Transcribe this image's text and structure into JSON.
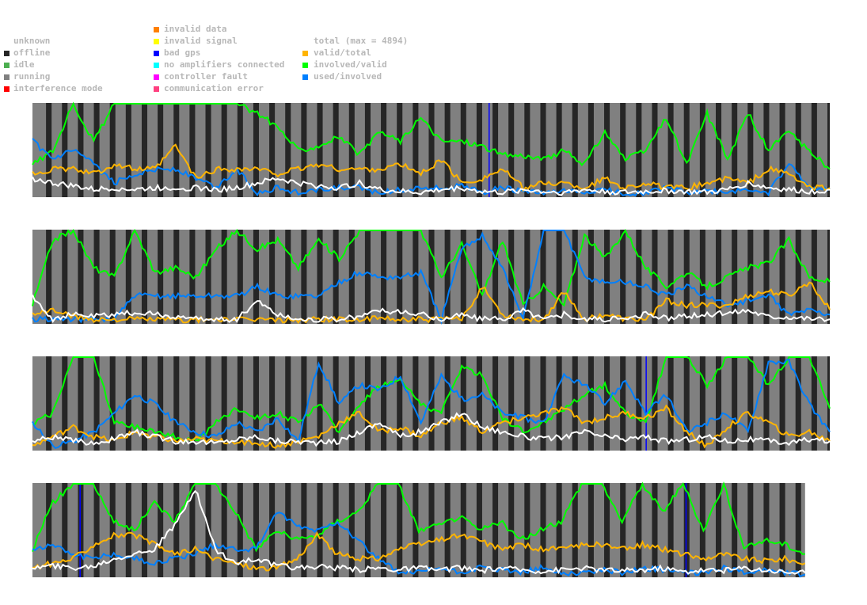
{
  "legend": {
    "status": [
      {
        "label": "unknown",
        "color": "#ffffff"
      },
      {
        "label": "offline",
        "color": "#262626"
      },
      {
        "label": "idle",
        "color": "#4caf50"
      },
      {
        "label": "running",
        "color": "#808080"
      },
      {
        "label": "interference mode",
        "color": "#ff0000"
      }
    ],
    "errors": [
      {
        "label": "invalid data",
        "color": "#ff8000"
      },
      {
        "label": "invalid signal",
        "color": "#ffff00"
      },
      {
        "label": "bad gps",
        "color": "#0000ff"
      },
      {
        "label": "no amplifiers connected",
        "color": "#00ffff"
      },
      {
        "label": "controller fault",
        "color": "#ff00ff"
      },
      {
        "label": "communication error",
        "color": "#ff4080"
      }
    ],
    "ratios": [
      {
        "label": "total (max = 4894)",
        "color": "#ffffff"
      },
      {
        "label": "valid/total",
        "color": "#ffb400"
      },
      {
        "label": "involved/valid",
        "color": "#00ff00"
      },
      {
        "label": "used/involved",
        "color": "#0080ff"
      }
    ]
  },
  "chart_data": {
    "type": "line",
    "title": "",
    "ylim": [
      0,
      1
    ],
    "offline": {
      "period": 20,
      "length": 7,
      "offset": 17
    },
    "strips": [
      {
        "range": [
          0,
          1000
        ],
        "bad_gps": [
          572
        ],
        "involved_valid": [
          0.35,
          0.5,
          1,
          0.6,
          1,
          1,
          1,
          1,
          1,
          1,
          1,
          0.9,
          0.75,
          0.5,
          0.55,
          0.65,
          0.45,
          0.7,
          0.6,
          0.85,
          0.6,
          0.6,
          0.55,
          0.45,
          0.45,
          0.4,
          0.5,
          0.35,
          0.7,
          0.4,
          0.5,
          0.85,
          0.35,
          0.9,
          0.4,
          0.9,
          0.5,
          0.7,
          0.5,
          0.3
        ],
        "used_involved": [
          0.6,
          0.4,
          0.5,
          0.35,
          0.15,
          0.25,
          0.3,
          0.3,
          0.2,
          0.1,
          0.3,
          0.05,
          0.1,
          0.05,
          0.08,
          0.1,
          0.1,
          0.05,
          0.08,
          0.1,
          0.1,
          0.12,
          0.05,
          0.1,
          0.06,
          0.04,
          0.06,
          0.05,
          0.08,
          0.04,
          0.05,
          0.1,
          0.05,
          0.06,
          0.05,
          0.08,
          0.05,
          0.35,
          0.1,
          0.1
        ],
        "valid_total": [
          0.25,
          0.3,
          0.3,
          0.25,
          0.35,
          0.3,
          0.3,
          0.55,
          0.2,
          0.3,
          0.3,
          0.3,
          0.25,
          0.3,
          0.35,
          0.3,
          0.3,
          0.3,
          0.35,
          0.25,
          0.4,
          0.15,
          0.2,
          0.3,
          0.1,
          0.15,
          0.15,
          0.1,
          0.2,
          0.1,
          0.15,
          0.1,
          0.1,
          0.15,
          0.2,
          0.15,
          0.3,
          0.25,
          0.1,
          0.1
        ],
        "total": [
          0.2,
          0.15,
          0.12,
          0.08,
          0.1,
          0.08,
          0.1,
          0.1,
          0.1,
          0.08,
          0.1,
          0.15,
          0.2,
          0.15,
          0.12,
          0.1,
          0.15,
          0.08,
          0.06,
          0.05,
          0.08,
          0.1,
          0.06,
          0.05,
          0.08,
          0.06,
          0.05,
          0.08,
          0.06,
          0.05,
          0.06,
          0.07,
          0.06,
          0.05,
          0.08,
          0.15,
          0.1,
          0.08,
          0.06,
          0.08
        ]
      },
      {
        "range": [
          0,
          1000
        ],
        "bad_gps": [],
        "involved_valid": [
          0.2,
          0.9,
          1,
          0.6,
          0.5,
          1,
          0.55,
          0.6,
          0.5,
          0.8,
          1,
          0.8,
          0.9,
          0.6,
          0.9,
          0.7,
          1,
          1,
          1,
          1,
          0.5,
          0.85,
          0.3,
          0.9,
          0.2,
          0.4,
          0.2,
          0.95,
          0.7,
          1,
          0.6,
          0.4,
          0.55,
          0.4,
          0.5,
          0.6,
          0.65,
          0.9,
          0.5,
          0.45
        ],
        "used_involved": [
          0.05,
          0.05,
          0.05,
          0.05,
          0.05,
          0.3,
          0.3,
          0.3,
          0.3,
          0.3,
          0.3,
          0.4,
          0.3,
          0.3,
          0.3,
          0.45,
          0.55,
          0.5,
          0.5,
          0.55,
          0.05,
          0.8,
          0.95,
          0.6,
          0.05,
          1,
          1,
          0.5,
          0.45,
          0.45,
          0.4,
          0.3,
          0.4,
          0.3,
          0.2,
          0.25,
          0.3,
          0.1,
          0.15,
          0.1
        ],
        "valid_total": [
          0.1,
          0.15,
          0.08,
          0.05,
          0.05,
          0.05,
          0.05,
          0.04,
          0.04,
          0.05,
          0.04,
          0.05,
          0.04,
          0.04,
          0.05,
          0.05,
          0.04,
          0.06,
          0.05,
          0.05,
          0.05,
          0.05,
          0.4,
          0.1,
          0.05,
          0.05,
          0.35,
          0.05,
          0.1,
          0.05,
          0.05,
          0.25,
          0.2,
          0.2,
          0.2,
          0.3,
          0.35,
          0.3,
          0.45,
          0.15
        ],
        "total": [
          0.3,
          0.05,
          0.1,
          0.08,
          0.1,
          0.12,
          0.1,
          0.08,
          0.05,
          0.05,
          0.05,
          0.25,
          0.1,
          0.05,
          0.05,
          0.05,
          0.08,
          0.15,
          0.12,
          0.1,
          0.05,
          0.1,
          0.05,
          0.05,
          0.15,
          0.05,
          0.1,
          0.05,
          0.05,
          0.05,
          0.1,
          0.06,
          0.08,
          0.1,
          0.12,
          0.15,
          0.08,
          0.08,
          0.06,
          0.05
        ]
      },
      {
        "range": [
          0,
          1000
        ],
        "bad_gps": [
          769
        ],
        "involved_valid": [
          0.3,
          0.4,
          1,
          1,
          0.3,
          0.25,
          0.2,
          0.15,
          0.1,
          0.3,
          0.45,
          0.35,
          0.4,
          0.3,
          0.5,
          0.2,
          0.5,
          0.7,
          0.75,
          0.5,
          0.4,
          0.9,
          0.8,
          0.35,
          0.2,
          0.3,
          0.45,
          0.6,
          0.7,
          0.4,
          0.3,
          1,
          1,
          0.7,
          1,
          1,
          0.7,
          1,
          1,
          0.45
        ],
        "used_involved": [
          0.3,
          0.05,
          0.1,
          0.2,
          0.4,
          0.6,
          0.5,
          0.3,
          0.2,
          0.15,
          0.3,
          0.2,
          0.35,
          0.1,
          0.95,
          0.5,
          0.7,
          0.65,
          0.8,
          0.3,
          0.8,
          0.55,
          0.6,
          0.4,
          0.35,
          0.3,
          0.8,
          0.7,
          0.5,
          0.75,
          0.4,
          0.6,
          0.2,
          0.3,
          0.4,
          0.2,
          0.95,
          0.95,
          0.5,
          0.2
        ],
        "valid_total": [
          0.05,
          0.15,
          0.25,
          0.15,
          0.1,
          0.2,
          0.15,
          0.1,
          0.12,
          0.1,
          0.1,
          0.08,
          0.05,
          0.1,
          0.15,
          0.3,
          0.4,
          0.2,
          0.25,
          0.15,
          0.3,
          0.35,
          0.2,
          0.3,
          0.35,
          0.4,
          0.45,
          0.3,
          0.35,
          0.4,
          0.35,
          0.45,
          0.2,
          0.05,
          0.25,
          0.4,
          0.3,
          0.15,
          0.2,
          0.1
        ],
        "total": [
          0.1,
          0.15,
          0.1,
          0.08,
          0.12,
          0.2,
          0.15,
          0.1,
          0.1,
          0.08,
          0.12,
          0.15,
          0.1,
          0.1,
          0.08,
          0.1,
          0.2,
          0.3,
          0.15,
          0.2,
          0.3,
          0.4,
          0.25,
          0.2,
          0.15,
          0.12,
          0.15,
          0.2,
          0.15,
          0.12,
          0.15,
          0.1,
          0.12,
          0.15,
          0.1,
          0.12,
          0.1,
          0.08,
          0.12,
          0.1
        ]
      },
      {
        "range": [
          0,
          969
        ],
        "bad_gps": [
          59,
          819
        ],
        "involved_valid": [
          0.3,
          0.8,
          1,
          1,
          0.6,
          0.5,
          0.8,
          0.6,
          1,
          1,
          0.7,
          0.3,
          0.5,
          0.4,
          0.45,
          0.6,
          0.7,
          1,
          1,
          0.5,
          0.55,
          0.65,
          0.5,
          0.6,
          0.4,
          0.5,
          0.6,
          1,
          1,
          0.6,
          1,
          0.7,
          1,
          0.5,
          1,
          0.3,
          0.4,
          0.35,
          0.25
        ],
        "used_involved": [
          0.3,
          0.35,
          0.25,
          0.2,
          0.25,
          0.2,
          0.15,
          0.2,
          0.25,
          0.35,
          0.3,
          0.3,
          0.7,
          0.55,
          0.5,
          0.6,
          0.4,
          0.2,
          0.05,
          0.05,
          0.1,
          0.05,
          0.1,
          0.08,
          0.05,
          0.1,
          0.05,
          0.05,
          0.08,
          0.05,
          0.1,
          0.08,
          0.05,
          0.05,
          0.1,
          0.05,
          0.08,
          0.05,
          0.03
        ],
        "valid_total": [
          0.1,
          0.15,
          0.2,
          0.35,
          0.45,
          0.45,
          0.35,
          0.25,
          0.3,
          0.2,
          0.15,
          0.1,
          0.1,
          0.2,
          0.45,
          0.25,
          0.2,
          0.2,
          0.3,
          0.35,
          0.4,
          0.45,
          0.4,
          0.3,
          0.35,
          0.3,
          0.3,
          0.35,
          0.35,
          0.3,
          0.35,
          0.3,
          0.25,
          0.2,
          0.25,
          0.2,
          0.18,
          0.2,
          0.15
        ],
        "total": [
          0.1,
          0.12,
          0.1,
          0.12,
          0.2,
          0.25,
          0.3,
          0.55,
          0.95,
          0.3,
          0.15,
          0.2,
          0.12,
          0.1,
          0.12,
          0.1,
          0.08,
          0.1,
          0.08,
          0.1,
          0.08,
          0.1,
          0.07,
          0.1,
          0.08,
          0.07,
          0.08,
          0.1,
          0.08,
          0.07,
          0.08,
          0.1,
          0.06,
          0.08,
          0.07,
          0.1,
          0.08,
          0.06,
          0.05
        ]
      }
    ]
  }
}
